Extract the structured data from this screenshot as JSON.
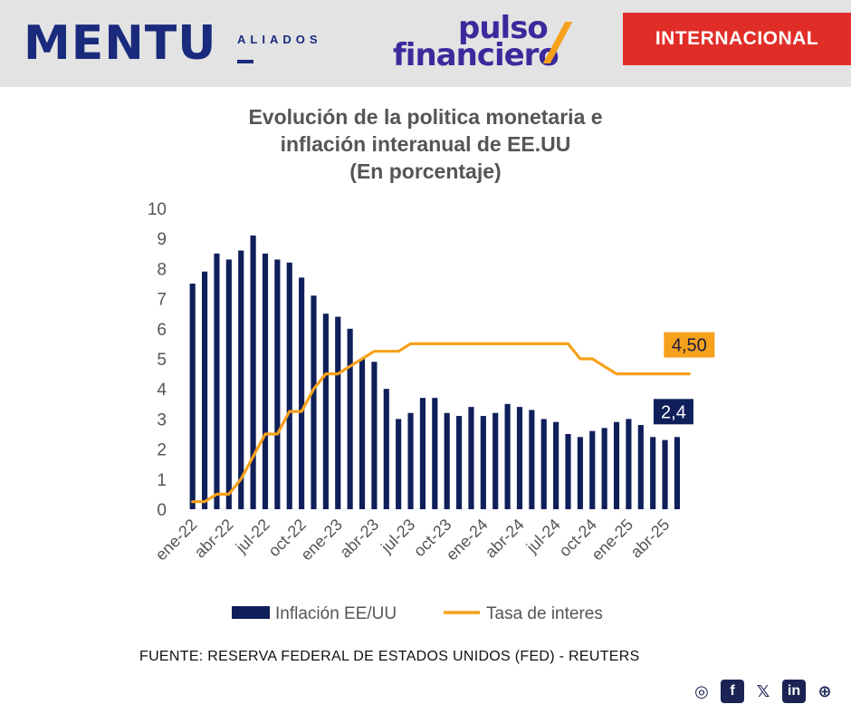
{
  "header": {
    "brand_main": "MENTU",
    "brand_sub": "ALIADOS",
    "partner_line1": "pulso",
    "partner_line2": "financiero",
    "section_badge": "INTERNACIONAL"
  },
  "chart_data": {
    "type": "bar",
    "title": [
      "Evolución de la politica monetaria e",
      "inflación interanual de EE.UU",
      "(En  porcentaje)"
    ],
    "ylim": [
      0,
      10
    ],
    "yticks": [
      "0",
      "1",
      "2",
      "3",
      "4",
      "5",
      "6",
      "7",
      "8",
      "9",
      "10"
    ],
    "months_count": 42,
    "x_tick_labels": [
      "ene-22",
      "abr-22",
      "jul-22",
      "oct-22",
      "ene-23",
      "abr-23",
      "jul-23",
      "oct-23",
      "ene-24",
      "abr-24",
      "jul-24",
      "oct-24",
      "ene-25",
      "abr-25"
    ],
    "x_tick_every": 3,
    "series": [
      {
        "name": "Inflación EE/UU",
        "type": "bar",
        "color": "#0f1f5a",
        "values": [
          7.5,
          7.9,
          8.5,
          8.3,
          8.6,
          9.1,
          8.5,
          8.3,
          8.2,
          7.7,
          7.1,
          6.5,
          6.4,
          6.0,
          5.0,
          4.9,
          4.0,
          3.0,
          3.2,
          3.7,
          3.7,
          3.2,
          3.1,
          3.4,
          3.1,
          3.2,
          3.5,
          3.4,
          3.3,
          3.0,
          2.9,
          2.5,
          2.4,
          2.6,
          2.7,
          2.9,
          3.0,
          2.8,
          2.4,
          2.3,
          2.4
        ]
      },
      {
        "name": "Tasa de interes",
        "type": "line",
        "color": "#f5a11c",
        "values": [
          0.25,
          0.25,
          0.5,
          0.5,
          1.0,
          1.75,
          2.5,
          2.5,
          3.25,
          3.25,
          4.0,
          4.5,
          4.5,
          4.75,
          5.0,
          5.25,
          5.25,
          5.25,
          5.5,
          5.5,
          5.5,
          5.5,
          5.5,
          5.5,
          5.5,
          5.5,
          5.5,
          5.5,
          5.5,
          5.5,
          5.5,
          5.5,
          5.0,
          5.0,
          4.75,
          4.5,
          4.5,
          4.5,
          4.5,
          4.5,
          4.5,
          4.5
        ]
      }
    ],
    "annotations": [
      {
        "series": "Tasa de interes",
        "text": "4,50",
        "color": "#f5a11c",
        "text_color": "#1b1b3a"
      },
      {
        "series": "Inflación EE/UU",
        "text": "2,4",
        "color": "#0f1f5a",
        "text_color": "#ffffff"
      }
    ],
    "legend": {
      "position": "bottom-center",
      "items": [
        "Inflación EE/UU",
        "Tasa de interes"
      ]
    }
  },
  "source": "FUENTE: RESERVA FEDERAL DE ESTADOS UNIDOS (FED) - REUTERS",
  "social": {
    "icons": [
      "instagram-icon",
      "facebook-icon",
      "x-icon",
      "linkedin-icon",
      "globe-icon"
    ],
    "glyphs": [
      "◎",
      "f",
      "𝕏",
      "in",
      "⊕"
    ]
  }
}
